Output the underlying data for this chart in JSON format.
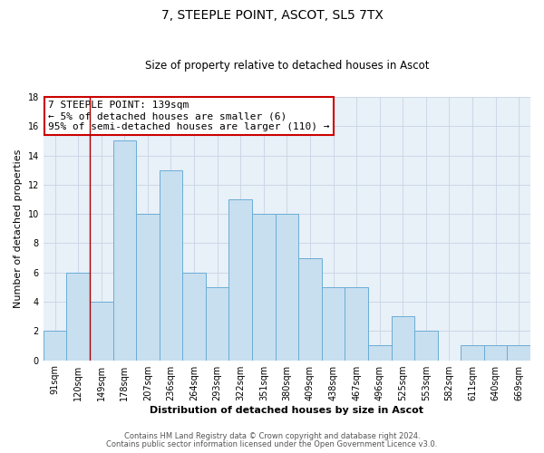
{
  "title": "7, STEEPLE POINT, ASCOT, SL5 7TX",
  "subtitle": "Size of property relative to detached houses in Ascot",
  "xlabel": "Distribution of detached houses by size in Ascot",
  "ylabel": "Number of detached properties",
  "bin_labels": [
    "91sqm",
    "120sqm",
    "149sqm",
    "178sqm",
    "207sqm",
    "236sqm",
    "264sqm",
    "293sqm",
    "322sqm",
    "351sqm",
    "380sqm",
    "409sqm",
    "438sqm",
    "467sqm",
    "496sqm",
    "525sqm",
    "553sqm",
    "582sqm",
    "611sqm",
    "640sqm",
    "669sqm"
  ],
  "bar_values": [
    2,
    6,
    4,
    15,
    10,
    13,
    6,
    5,
    11,
    10,
    10,
    7,
    5,
    5,
    1,
    3,
    2,
    0,
    1,
    1,
    1
  ],
  "bar_color": "#c8dff0",
  "bar_edge_color": "#6aadd5",
  "plot_bg_color": "#e8f0f8",
  "fig_bg_color": "#ffffff",
  "ylim": [
    0,
    18
  ],
  "yticks": [
    0,
    2,
    4,
    6,
    8,
    10,
    12,
    14,
    16,
    18
  ],
  "vline_x": 2,
  "vline_color": "#aa0000",
  "annotation_lines": [
    "7 STEEPLE POINT: 139sqm",
    "← 5% of detached houses are smaller (6)",
    "95% of semi-detached houses are larger (110) →"
  ],
  "footer1": "Contains HM Land Registry data © Crown copyright and database right 2024.",
  "footer2": "Contains public sector information licensed under the Open Government Licence v3.0.",
  "grid_color": "#c8d4e4"
}
